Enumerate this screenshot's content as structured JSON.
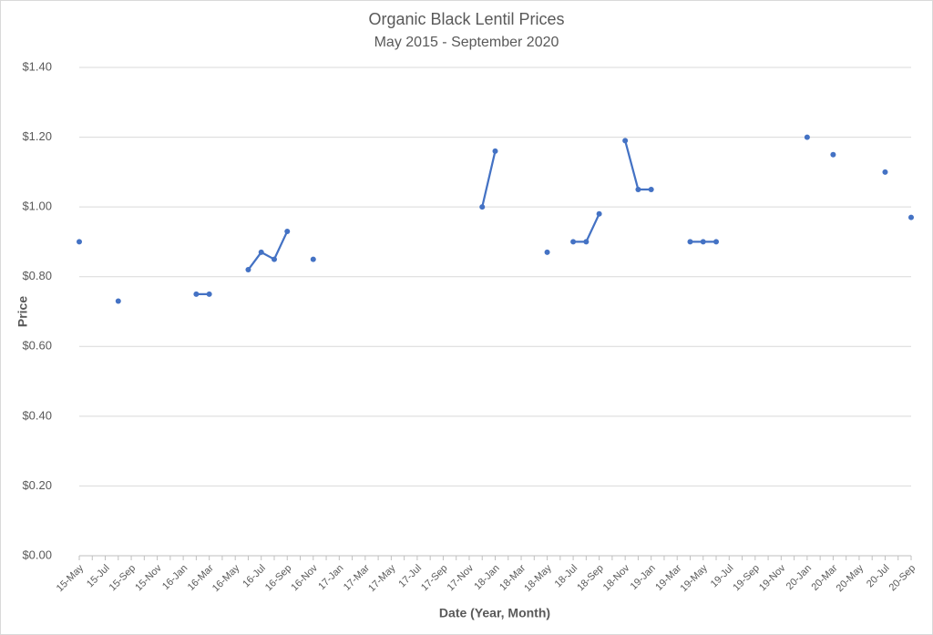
{
  "chart_data": {
    "type": "line",
    "title": "Organic Black Lentil Prices",
    "subtitle": "May 2015 - September 2020",
    "x_label": "Date (Year, Month)",
    "y_label": "Price",
    "categories": [
      "15-May",
      null,
      "15-Jul",
      null,
      "15-Sep",
      null,
      "15-Nov",
      null,
      "16-Jan",
      null,
      "16-Mar",
      null,
      "16-May",
      null,
      "16-Jul",
      null,
      "16-Sep",
      null,
      "16-Nov",
      null,
      "17-Jan",
      null,
      "17-Mar",
      null,
      "17-May",
      null,
      "17-Jul",
      null,
      "17-Sep",
      null,
      "17-Nov",
      null,
      "18-Jan",
      null,
      "18-Mar",
      null,
      "18-May",
      null,
      "18-Jul",
      null,
      "18-Sep",
      null,
      "18-Nov",
      null,
      "19-Jan",
      null,
      "19-Mar",
      null,
      "19-May",
      null,
      "19-Jul",
      null,
      "19-Sep",
      null,
      "19-Nov",
      null,
      "20-Jan",
      null,
      "20-Mar",
      null,
      "20-May",
      null,
      "20-Jul",
      null,
      "20-Sep"
    ],
    "series": [
      {
        "name": "Price",
        "color": "#4472c4",
        "values": [
          0.9,
          null,
          null,
          0.73,
          null,
          null,
          null,
          null,
          null,
          0.75,
          0.75,
          null,
          null,
          0.82,
          0.87,
          0.85,
          0.93,
          null,
          0.85,
          null,
          null,
          null,
          null,
          null,
          null,
          null,
          null,
          null,
          null,
          null,
          null,
          1.0,
          1.16,
          null,
          null,
          null,
          0.87,
          null,
          0.9,
          0.9,
          0.98,
          null,
          1.19,
          1.05,
          1.05,
          null,
          null,
          0.9,
          0.9,
          0.9,
          null,
          null,
          null,
          null,
          null,
          null,
          1.2,
          null,
          1.15,
          null,
          null,
          null,
          1.1,
          null,
          0.97
        ]
      }
    ],
    "ylim": [
      0,
      1.4
    ],
    "yticks": [
      {
        "value": 0,
        "label": "$0.00"
      },
      {
        "value": 0.2,
        "label": "$0.20"
      },
      {
        "value": 0.4,
        "label": "$0.40"
      },
      {
        "value": 0.6,
        "label": "$0.60"
      },
      {
        "value": 0.8,
        "label": "$0.80"
      },
      {
        "value": 1.0,
        "label": "$1.00"
      },
      {
        "value": 1.2,
        "label": "$1.20"
      },
      {
        "value": 1.4,
        "label": "$1.40"
      }
    ],
    "grid": true
  }
}
